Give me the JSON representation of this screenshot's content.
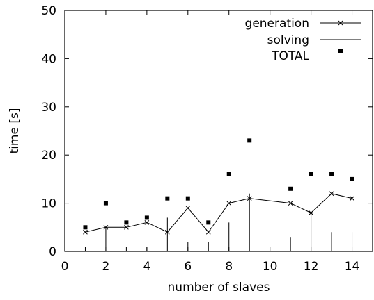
{
  "chart_data": {
    "type": "line",
    "title": "",
    "xlabel": "number of slaves",
    "ylabel": "time [s]",
    "xlim": [
      0,
      15
    ],
    "ylim": [
      0,
      50
    ],
    "xticks": [
      "0",
      "2",
      "4",
      "6",
      "8",
      "10",
      "12",
      "14"
    ],
    "yticks": [
      "0",
      "10",
      "20",
      "30",
      "40",
      "50"
    ],
    "grid": false,
    "legend_position": "top-right",
    "series": [
      {
        "name": "generation",
        "style": "line with x markers",
        "color": "#000000",
        "x": [
          1,
          2,
          3,
          4,
          5,
          6,
          7,
          8,
          9,
          11,
          12,
          13,
          14
        ],
        "y": [
          4,
          5,
          5,
          6,
          4,
          9,
          4,
          10,
          11,
          10,
          8,
          12,
          11
        ]
      },
      {
        "name": "solving",
        "style": "impulses",
        "color": "#000000",
        "x": [
          1,
          2,
          3,
          4,
          5,
          6,
          7,
          8,
          9,
          11,
          12,
          13,
          14
        ],
        "y": [
          1,
          5,
          1,
          1,
          7,
          2,
          2,
          6,
          12,
          3,
          8,
          4,
          4
        ]
      },
      {
        "name": "TOTAL",
        "style": "square points",
        "color": "#000000",
        "x": [
          1,
          2,
          3,
          4,
          5,
          6,
          7,
          8,
          9,
          11,
          12,
          13,
          14
        ],
        "y": [
          5,
          10,
          6,
          7,
          11,
          11,
          6,
          16,
          23,
          13,
          16,
          16,
          15
        ]
      }
    ]
  }
}
